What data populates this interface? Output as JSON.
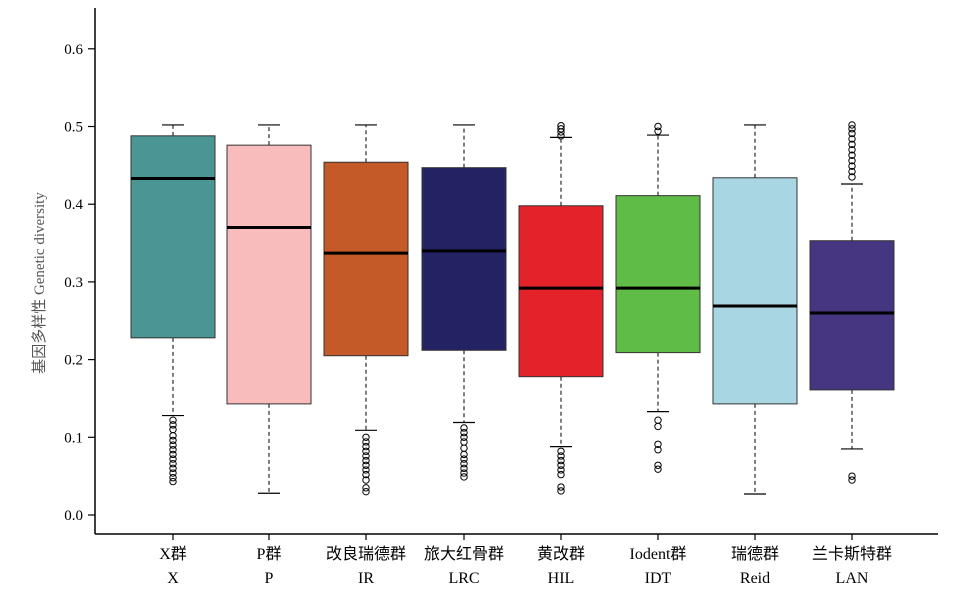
{
  "chart_data": {
    "type": "box",
    "ylabel": "基因多样性 Genetic diversity",
    "ylim": [
      0,
      0.65
    ],
    "yticks": [
      "0.0",
      "0.1",
      "0.2",
      "0.3",
      "0.4",
      "0.5",
      "0.6"
    ],
    "ytick_values": [
      0,
      0.1,
      0.2,
      0.3,
      0.4,
      0.5,
      0.6
    ],
    "grid": false,
    "categories": [
      {
        "name": "X群",
        "code": "X",
        "color": "#4c9595",
        "min": 0.128,
        "q1": 0.228,
        "median": 0.433,
        "q3": 0.488,
        "max": 0.502,
        "outliers": [
          0.043,
          0.048,
          0.054,
          0.06,
          0.066,
          0.072,
          0.078,
          0.084,
          0.09,
          0.096,
          0.102,
          0.11,
          0.116,
          0.122
        ]
      },
      {
        "name": "P群",
        "code": "P",
        "color": "#f9bcbc",
        "min": 0.028,
        "q1": 0.143,
        "median": 0.37,
        "q3": 0.476,
        "max": 0.502,
        "outliers": []
      },
      {
        "name": "改良瑞德群",
        "code": "IR",
        "color": "#c35a28",
        "min": 0.109,
        "q1": 0.205,
        "median": 0.337,
        "q3": 0.454,
        "max": 0.502,
        "outliers": [
          0.03,
          0.035,
          0.045,
          0.052,
          0.058,
          0.064,
          0.07,
          0.076,
          0.082,
          0.088,
          0.094,
          0.1
        ]
      },
      {
        "name": "旅大红骨群",
        "code": "LRC",
        "color": "#232363",
        "min": 0.119,
        "q1": 0.212,
        "median": 0.34,
        "q3": 0.447,
        "max": 0.502,
        "outliers": [
          0.049,
          0.054,
          0.06,
          0.066,
          0.072,
          0.078,
          0.086,
          0.094,
          0.1,
          0.106,
          0.112
        ]
      },
      {
        "name": "黄改群",
        "code": "HIL",
        "color": "#e42229",
        "min": 0.088,
        "q1": 0.178,
        "median": 0.292,
        "q3": 0.398,
        "max": 0.486,
        "outliers": [
          0.031,
          0.036,
          0.052,
          0.058,
          0.064,
          0.07,
          0.076,
          0.082,
          0.488,
          0.493,
          0.497,
          0.501
        ]
      },
      {
        "name": "Iodent群",
        "code": "IDT",
        "color": "#5fbc46",
        "min": 0.133,
        "q1": 0.209,
        "median": 0.292,
        "q3": 0.411,
        "max": 0.489,
        "outliers": [
          0.059,
          0.064,
          0.084,
          0.091,
          0.114,
          0.122,
          0.494,
          0.5
        ]
      },
      {
        "name": "瑞德群",
        "code": "Reid",
        "color": "#a8d6e3",
        "min": 0.027,
        "q1": 0.143,
        "median": 0.269,
        "q3": 0.434,
        "max": 0.502,
        "outliers": []
      },
      {
        "name": "兰卡斯特群",
        "code": "LAN",
        "color": "#463580",
        "min": 0.085,
        "q1": 0.161,
        "median": 0.26,
        "q3": 0.353,
        "max": 0.426,
        "outliers": [
          0.045,
          0.05,
          0.435,
          0.442,
          0.449,
          0.456,
          0.463,
          0.47,
          0.477,
          0.484,
          0.491,
          0.497,
          0.502
        ]
      }
    ]
  }
}
